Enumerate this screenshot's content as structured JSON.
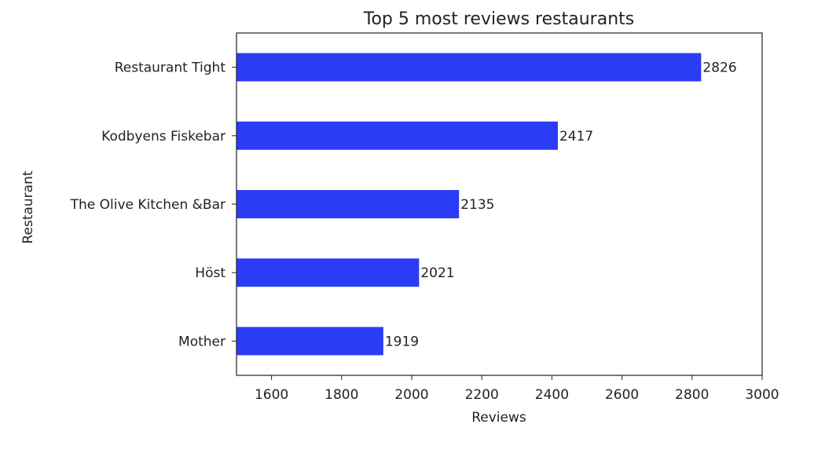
{
  "chart_data": {
    "type": "bar",
    "orientation": "horizontal",
    "title": "Top 5 most reviews restaurants",
    "xlabel": "Reviews",
    "ylabel": "Restaurant",
    "categories": [
      "Restaurant Tight",
      "Kodbyens Fiskebar",
      "The Olive Kitchen &Bar",
      "Höst",
      "Mother"
    ],
    "values": [
      2826,
      2417,
      2135,
      2021,
      1919
    ],
    "xlim": [
      1500,
      3000
    ],
    "xticks": [
      1600,
      1800,
      2000,
      2200,
      2400,
      2600,
      2800,
      3000
    ],
    "bar_color": "#2b3cf5",
    "grid": false,
    "legend": "none"
  }
}
